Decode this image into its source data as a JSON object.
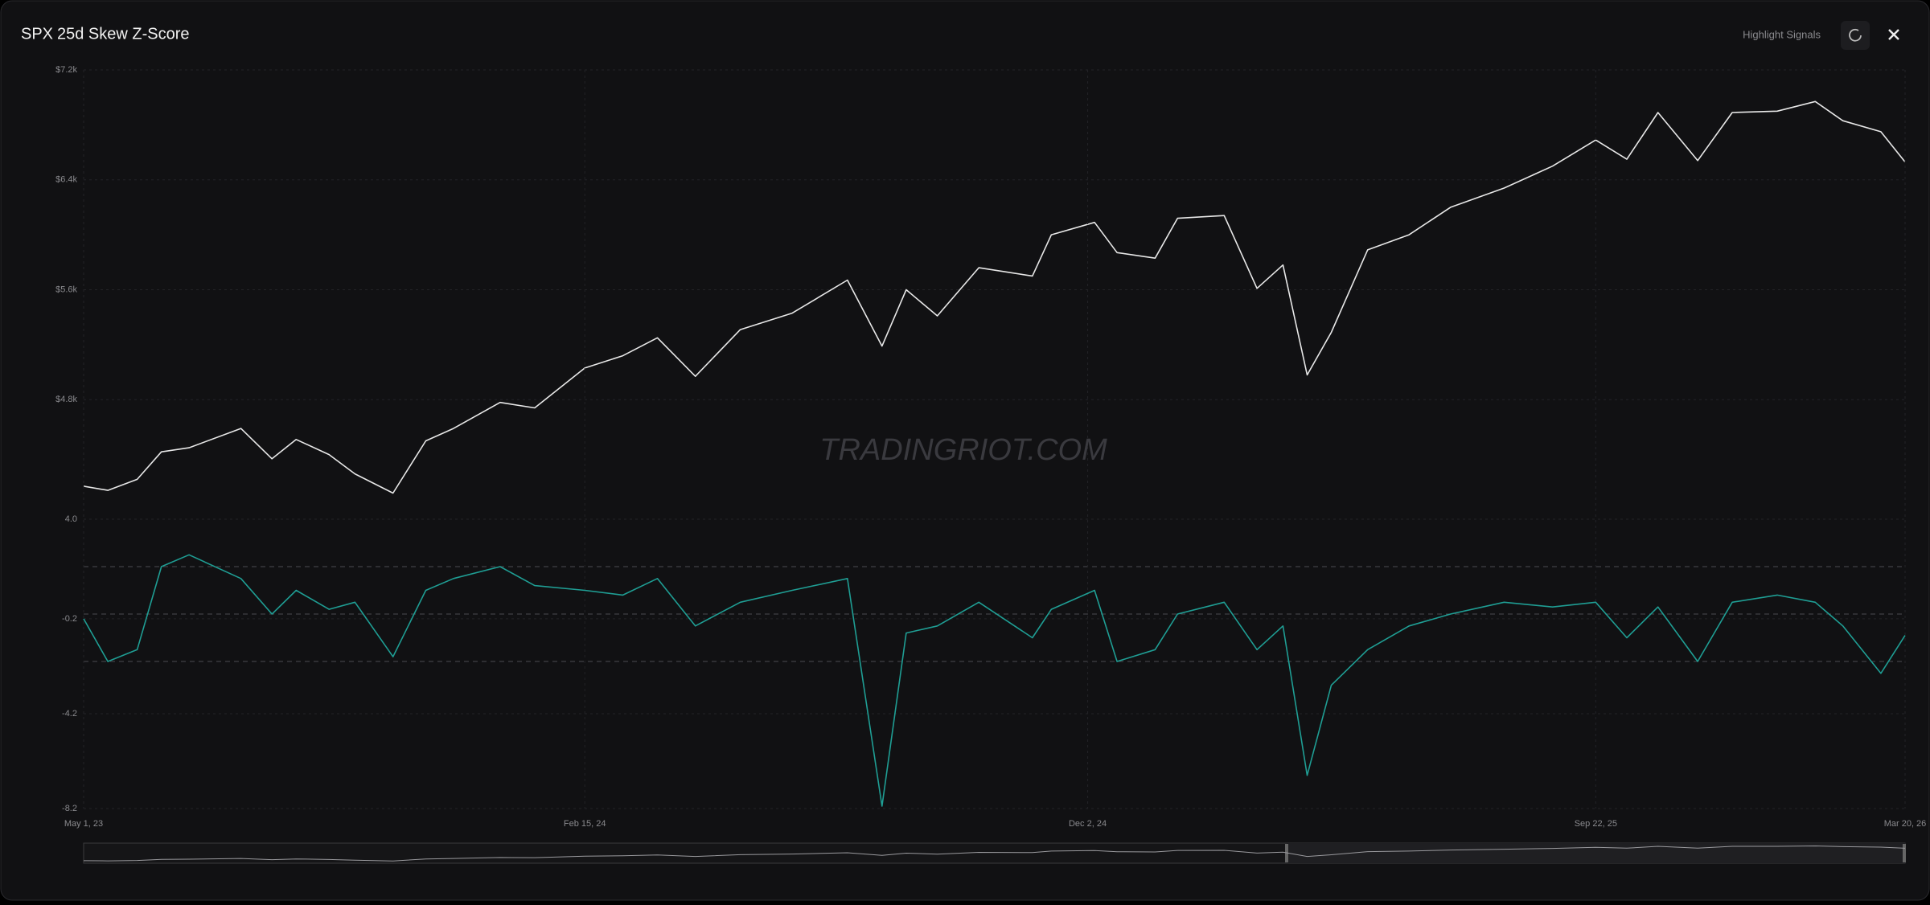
{
  "header": {
    "symbol": "SPX",
    "title": "25d Skew Z-Score",
    "button": "Highlight Signals"
  },
  "watermark": "TRADINGRIOT.COM",
  "chart_data": [
    {
      "type": "line",
      "x": [
        "2023-05-01",
        "2023-05-15",
        "2023-06-01",
        "2023-06-15",
        "2023-07-01",
        "2023-07-31",
        "2023-08-18",
        "2023-09-01",
        "2023-09-20",
        "2023-10-05",
        "2023-10-27",
        "2023-11-15",
        "2023-12-01",
        "2023-12-28",
        "2024-01-17",
        "2024-02-15",
        "2024-03-08",
        "2024-03-28",
        "2024-04-19",
        "2024-05-15",
        "2024-06-14",
        "2024-07-16",
        "2024-08-05",
        "2024-08-19",
        "2024-09-06",
        "2024-09-30",
        "2024-10-31",
        "2024-11-11",
        "2024-12-06",
        "2024-12-19",
        "2025-01-10",
        "2025-01-23",
        "2025-02-19",
        "2025-03-10",
        "2025-03-25",
        "2025-04-08",
        "2025-04-22",
        "2025-05-13",
        "2025-06-06",
        "2025-06-30",
        "2025-07-31",
        "2025-08-28",
        "2025-09-22",
        "2025-10-10",
        "2025-10-28",
        "2025-11-20",
        "2025-12-10",
        "2026-01-05",
        "2026-01-27",
        "2026-02-12",
        "2026-03-06",
        "2026-03-20"
      ],
      "series": [
        {
          "color": "#e8e8e8",
          "values": [
            4170,
            4140,
            4220,
            4420,
            4450,
            4590,
            4370,
            4510,
            4400,
            4260,
            4120,
            4500,
            4590,
            4780,
            4740,
            5030,
            5120,
            5250,
            4970,
            5310,
            5430,
            5670,
            5190,
            5600,
            5410,
            5760,
            5700,
            6000,
            6090,
            5870,
            5830,
            6120,
            6140,
            5610,
            5780,
            4980,
            5290,
            5890,
            6000,
            6200,
            6340,
            6500,
            6690,
            6550,
            6890,
            6540,
            6890,
            6900,
            6970,
            6830,
            6750,
            6530
          ]
        }
      ],
      "xlim": [
        "2023-05-01",
        "2026-03-20"
      ],
      "ylim": [
        4000,
        7200
      ],
      "yticks": [
        {
          "value": 4800,
          "label": "$4.8k"
        },
        {
          "value": 5600,
          "label": "$5.6k"
        },
        {
          "value": 6400,
          "label": "$6.4k"
        },
        {
          "value": 7200,
          "label": "$7.2k"
        }
      ],
      "grid": true
    },
    {
      "type": "line",
      "x": [
        "2023-05-01",
        "2023-05-15",
        "2023-06-01",
        "2023-06-15",
        "2023-07-01",
        "2023-07-31",
        "2023-08-18",
        "2023-09-01",
        "2023-09-20",
        "2023-10-05",
        "2023-10-27",
        "2023-11-15",
        "2023-12-01",
        "2023-12-28",
        "2024-01-17",
        "2024-02-15",
        "2024-03-08",
        "2024-03-28",
        "2024-04-19",
        "2024-05-15",
        "2024-06-14",
        "2024-07-16",
        "2024-08-05",
        "2024-08-19",
        "2024-09-06",
        "2024-09-30",
        "2024-10-31",
        "2024-11-11",
        "2024-12-06",
        "2024-12-19",
        "2025-01-10",
        "2025-01-23",
        "2025-02-19",
        "2025-03-10",
        "2025-03-25",
        "2025-04-08",
        "2025-04-22",
        "2025-05-13",
        "2025-06-06",
        "2025-06-30",
        "2025-07-31",
        "2025-08-28",
        "2025-09-22",
        "2025-10-10",
        "2025-10-28",
        "2025-11-20",
        "2025-12-10",
        "2026-01-05",
        "2026-01-27",
        "2026-02-12",
        "2026-03-06",
        "2026-03-20"
      ],
      "series": [
        {
          "color": "#1f9e94",
          "values": [
            -0.2,
            -2.0,
            -1.5,
            2.0,
            2.5,
            1.5,
            0.0,
            1.0,
            0.2,
            0.5,
            -1.8,
            1.0,
            1.5,
            2.0,
            1.2,
            1.0,
            0.8,
            1.5,
            -0.5,
            0.5,
            1.0,
            1.5,
            -8.1,
            -0.8,
            -0.5,
            0.5,
            -1.0,
            0.2,
            1.0,
            -2.0,
            -1.5,
            0.0,
            0.5,
            -1.5,
            -0.5,
            -6.8,
            -3.0,
            -1.5,
            -0.5,
            0.0,
            0.5,
            0.3,
            0.5,
            -1.0,
            0.3,
            -2.0,
            0.5,
            0.8,
            0.5,
            -0.5,
            -2.5,
            -0.9
          ]
        }
      ],
      "xlim": [
        "2023-05-01",
        "2026-03-20"
      ],
      "xticks": [
        {
          "value": "2023-05-01",
          "label": "May 1, 23"
        },
        {
          "value": "2024-02-15",
          "label": "Feb 15, 24"
        },
        {
          "value": "2024-12-02",
          "label": "Dec 2, 24"
        },
        {
          "value": "2025-09-22",
          "label": "Sep 22, 25"
        },
        {
          "value": "2026-03-20",
          "label": "Mar 20, 26"
        }
      ],
      "ylim": [
        -8.2,
        4
      ],
      "yticks": [
        -8.2,
        -4.2,
        -0.2,
        {
          "value": 4,
          "label": "4.0"
        }
      ],
      "reference_lines": [
        2,
        0,
        -2
      ],
      "grid": true
    }
  ]
}
